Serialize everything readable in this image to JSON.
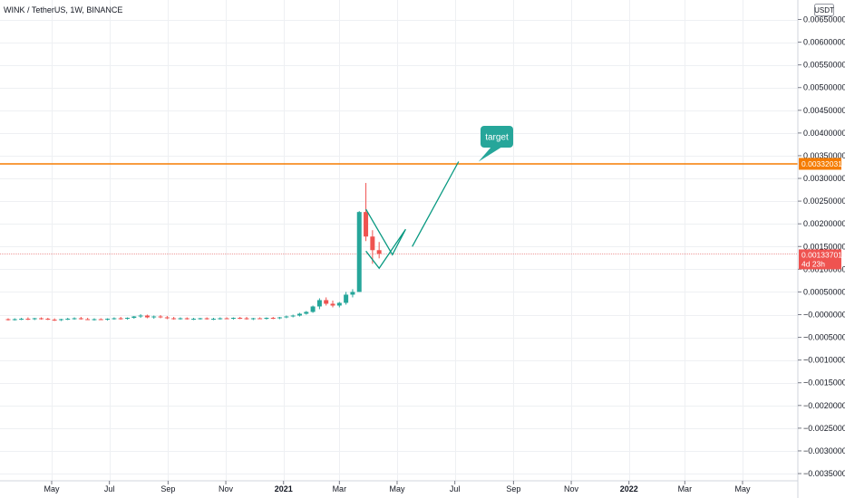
{
  "header": {
    "symbol_title": "WINK / TetherUS, 1W, BINANCE",
    "currency_badge": "USDT"
  },
  "colors": {
    "up": "#26a69a",
    "down": "#ef5350",
    "drawing": "#089981",
    "hline": "#f57c00",
    "price_line": "#ef9a9a",
    "grid": "#eef0f3"
  },
  "chart_data": {
    "type": "candlestick",
    "title": "WINK / TetherUS, 1W, BINANCE",
    "ylim": [
      -0.0036,
      0.0068
    ],
    "yticks": [
      0.0065,
      0.006,
      0.0055,
      0.005,
      0.0045,
      0.004,
      0.0035,
      0.003,
      0.0025,
      0.002,
      0.0015,
      0.001,
      0.0005,
      0,
      -0.0005,
      -0.001,
      -0.0015,
      -0.002,
      -0.0025,
      -0.003,
      -0.0035
    ],
    "ytick_labels": [
      "0.00650000",
      "0.00600000",
      "0.00550000",
      "0.00500000",
      "0.00450000",
      "0.00400000",
      "0.00350000",
      "0.00300000",
      "0.00250000",
      "0.00200000",
      "0.00150000",
      "0.00100000",
      "0.00050000",
      "−0.00000000",
      "−0.00050000",
      "−0.00100000",
      "−0.00150000",
      "−0.00200000",
      "−0.00250000",
      "−0.00300000",
      "−0.00350000"
    ],
    "x_months": [
      "May",
      "Jul",
      "Sep",
      "Nov",
      "2021",
      "Mar",
      "May",
      "Jul",
      "Sep",
      "Nov",
      "2022",
      "Mar",
      "May"
    ],
    "x_month_dates": [
      "2020-05-01",
      "2020-07-01",
      "2020-09-01",
      "2020-11-01",
      "2021-01-01",
      "2021-03-01",
      "2021-05-01",
      "2021-07-01",
      "2021-09-01",
      "2021-11-01",
      "2022-01-01",
      "2022-03-01",
      "2022-05-01"
    ],
    "grid": true,
    "horizontal_line": {
      "value": 0.00332031,
      "label": "0.00332031"
    },
    "last_price": {
      "value": 0.00133701,
      "label": "0.00133701",
      "countdown": "4d 23h"
    },
    "annotation": {
      "text": "target"
    },
    "candles": [
      {
        "date": "2020-03-16",
        "o": -0.0001,
        "h": -8e-05,
        "l": -0.00013,
        "c": -0.00011
      },
      {
        "date": "2020-03-23",
        "o": -0.00011,
        "h": -8e-05,
        "l": -0.00013,
        "c": -0.0001
      },
      {
        "date": "2020-03-30",
        "o": -0.0001,
        "h": -7e-05,
        "l": -0.00012,
        "c": -9e-05
      },
      {
        "date": "2020-04-06",
        "o": -9e-05,
        "h": -6e-05,
        "l": -0.00012,
        "c": -0.0001
      },
      {
        "date": "2020-04-13",
        "o": -0.0001,
        "h": -7e-05,
        "l": -0.00012,
        "c": -8e-05
      },
      {
        "date": "2020-04-20",
        "o": -8e-05,
        "h": -6e-05,
        "l": -0.00011,
        "c": -9e-05
      },
      {
        "date": "2020-04-27",
        "o": -9e-05,
        "h": -7e-05,
        "l": -0.00012,
        "c": -0.00011
      },
      {
        "date": "2020-05-04",
        "o": -0.00011,
        "h": -8e-05,
        "l": -0.00014,
        "c": -0.00012
      },
      {
        "date": "2020-05-11",
        "o": -0.00012,
        "h": -9e-05,
        "l": -0.00014,
        "c": -0.0001
      },
      {
        "date": "2020-05-18",
        "o": -0.0001,
        "h": -7e-05,
        "l": -0.00012,
        "c": -9e-05
      },
      {
        "date": "2020-05-25",
        "o": -9e-05,
        "h": -6e-05,
        "l": -0.00011,
        "c": -8e-05
      },
      {
        "date": "2020-06-01",
        "o": -8e-05,
        "h": -5e-05,
        "l": -0.00011,
        "c": -0.0001
      },
      {
        "date": "2020-06-08",
        "o": -0.0001,
        "h": -7e-05,
        "l": -0.00012,
        "c": -0.00011
      },
      {
        "date": "2020-06-15",
        "o": -0.00011,
        "h": -8e-05,
        "l": -0.00013,
        "c": -0.0001
      },
      {
        "date": "2020-06-22",
        "o": -0.0001,
        "h": -8e-05,
        "l": -0.00012,
        "c": -0.00011
      },
      {
        "date": "2020-06-29",
        "o": -0.00011,
        "h": -8e-05,
        "l": -0.00013,
        "c": -9e-05
      },
      {
        "date": "2020-07-06",
        "o": -9e-05,
        "h": -6e-05,
        "l": -0.00011,
        "c": -8e-05
      },
      {
        "date": "2020-07-13",
        "o": -8e-05,
        "h": -5e-05,
        "l": -0.00011,
        "c": -9e-05
      },
      {
        "date": "2020-07-20",
        "o": -9e-05,
        "h": -6e-05,
        "l": -0.00011,
        "c": -7e-05
      },
      {
        "date": "2020-07-27",
        "o": -7e-05,
        "h": -3e-05,
        "l": -9e-05,
        "c": -4e-05
      },
      {
        "date": "2020-08-03",
        "o": -4e-05,
        "h": 1e-05,
        "l": -7e-05,
        "c": -2e-05
      },
      {
        "date": "2020-08-10",
        "o": -2e-05,
        "h": 0.0,
        "l": -8e-05,
        "c": -6e-05
      },
      {
        "date": "2020-08-17",
        "o": -6e-05,
        "h": -2e-05,
        "l": -9e-05,
        "c": -4e-05
      },
      {
        "date": "2020-08-24",
        "o": -4e-05,
        "h": -1e-05,
        "l": -8e-05,
        "c": -6e-05
      },
      {
        "date": "2020-08-31",
        "o": -6e-05,
        "h": -3e-05,
        "l": -0.0001,
        "c": -8e-05
      },
      {
        "date": "2020-09-07",
        "o": -8e-05,
        "h": -5e-05,
        "l": -0.00011,
        "c": -9e-05
      },
      {
        "date": "2020-09-14",
        "o": -9e-05,
        "h": -6e-05,
        "l": -0.00011,
        "c": -8e-05
      },
      {
        "date": "2020-09-21",
        "o": -8e-05,
        "h": -6e-05,
        "l": -0.00011,
        "c": -0.0001
      },
      {
        "date": "2020-09-28",
        "o": -0.0001,
        "h": -7e-05,
        "l": -0.00012,
        "c": -9e-05
      },
      {
        "date": "2020-10-05",
        "o": -9e-05,
        "h": -7e-05,
        "l": -0.00011,
        "c": -8e-05
      },
      {
        "date": "2020-10-12",
        "o": -8e-05,
        "h": -6e-05,
        "l": -0.00011,
        "c": -0.0001
      },
      {
        "date": "2020-10-19",
        "o": -0.0001,
        "h": -7e-05,
        "l": -0.00012,
        "c": -9e-05
      },
      {
        "date": "2020-10-26",
        "o": -9e-05,
        "h": -6e-05,
        "l": -0.00011,
        "c": -8e-05
      },
      {
        "date": "2020-11-02",
        "o": -8e-05,
        "h": -6e-05,
        "l": -0.0001,
        "c": -9e-05
      },
      {
        "date": "2020-11-09",
        "o": -9e-05,
        "h": -6e-05,
        "l": -0.00011,
        "c": -7e-05
      },
      {
        "date": "2020-11-16",
        "o": -7e-05,
        "h": -5e-05,
        "l": -0.0001,
        "c": -8e-05
      },
      {
        "date": "2020-11-23",
        "o": -8e-05,
        "h": -5e-05,
        "l": -0.00011,
        "c": -0.0001
      },
      {
        "date": "2020-11-30",
        "o": -0.0001,
        "h": -7e-05,
        "l": -0.00012,
        "c": -8e-05
      },
      {
        "date": "2020-12-07",
        "o": -8e-05,
        "h": -6e-05,
        "l": -0.0001,
        "c": -9e-05
      },
      {
        "date": "2020-12-14",
        "o": -9e-05,
        "h": -6e-05,
        "l": -0.00011,
        "c": -7e-05
      },
      {
        "date": "2020-12-21",
        "o": -7e-05,
        "h": -5e-05,
        "l": -0.0001,
        "c": -8e-05
      },
      {
        "date": "2020-12-28",
        "o": -8e-05,
        "h": -5e-05,
        "l": -0.0001,
        "c": -6e-05
      },
      {
        "date": "2021-01-04",
        "o": -6e-05,
        "h": -2e-05,
        "l": -8e-05,
        "c": -4e-05
      },
      {
        "date": "2021-01-11",
        "o": -4e-05,
        "h": 0.0,
        "l": -6e-05,
        "c": -2e-05
      },
      {
        "date": "2021-01-18",
        "o": -2e-05,
        "h": 4e-05,
        "l": -4e-05,
        "c": 2e-05
      },
      {
        "date": "2021-01-25",
        "o": 2e-05,
        "h": 8e-05,
        "l": 0.0,
        "c": 6e-05
      },
      {
        "date": "2021-02-01",
        "o": 6e-05,
        "h": 0.0002,
        "l": 4e-05,
        "c": 0.00018
      },
      {
        "date": "2021-02-08",
        "o": 0.00018,
        "h": 0.00036,
        "l": 0.00012,
        "c": 0.00032
      },
      {
        "date": "2021-02-15",
        "o": 0.00032,
        "h": 0.00038,
        "l": 0.0002,
        "c": 0.00024
      },
      {
        "date": "2021-02-22",
        "o": 0.00024,
        "h": 0.00031,
        "l": 0.00016,
        "c": 0.0002
      },
      {
        "date": "2021-03-01",
        "o": 0.0002,
        "h": 0.00028,
        "l": 0.00016,
        "c": 0.00026
      },
      {
        "date": "2021-03-08",
        "o": 0.00026,
        "h": 0.0005,
        "l": 0.00022,
        "c": 0.00044
      },
      {
        "date": "2021-03-15",
        "o": 0.00044,
        "h": 0.00056,
        "l": 0.00038,
        "c": 0.0005
      },
      {
        "date": "2021-03-22",
        "o": 0.0005,
        "h": 0.00228,
        "l": 0.0005,
        "c": 0.00226
      },
      {
        "date": "2021-03-29",
        "o": 0.00226,
        "h": 0.0029,
        "l": 0.00162,
        "c": 0.00172
      },
      {
        "date": "2021-04-05",
        "o": 0.00172,
        "h": 0.00186,
        "l": 0.00112,
        "c": 0.00142
      },
      {
        "date": "2021-04-12",
        "o": 0.00142,
        "h": 0.0016,
        "l": 0.00124,
        "c": 0.00134
      }
    ],
    "drawing": {
      "path": [
        {
          "date": "2021-03-29",
          "v": 0.00232
        },
        {
          "date": "2021-04-26",
          "v": 0.00132
        },
        {
          "date": "2021-05-10",
          "v": 0.00188
        },
        {
          "date": "2021-04-12",
          "v": 0.00102
        },
        {
          "date": "2021-03-29",
          "v": 0.0014
        }
      ],
      "arrow": [
        {
          "date": "2021-05-17",
          "v": 0.0015
        },
        {
          "date": "2021-07-05",
          "v": 0.00337
        }
      ]
    }
  }
}
